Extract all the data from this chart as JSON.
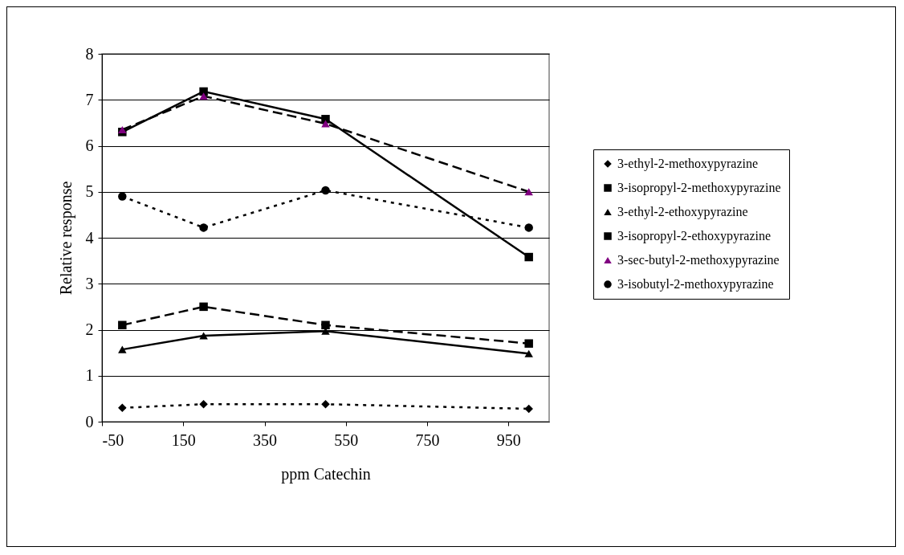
{
  "chart_data": {
    "type": "line",
    "xlabel": "ppm Catechin",
    "ylabel": "Relative response",
    "x": [
      0,
      200,
      500,
      1000
    ],
    "series": [
      {
        "name": "3-ethyl-2-methoxypyrazine",
        "color": "#000000",
        "marker": "diamond",
        "line_style": "dotted",
        "values": [
          0.3,
          0.38,
          0.38,
          0.28
        ]
      },
      {
        "name": "3-isopropyl-2-methoxypyrazine",
        "color": "#000000",
        "marker": "square",
        "line_style": "dashed",
        "values": [
          2.1,
          2.5,
          2.1,
          1.7
        ]
      },
      {
        "name": "3-ethyl-2-ethoxypyrazine",
        "color": "#000000",
        "marker": "triangle",
        "line_style": "solid",
        "values": [
          1.57,
          1.87,
          1.97,
          1.48
        ]
      },
      {
        "name": "3-isopropyl-2-ethoxypyrazine",
        "color": "#000000",
        "marker": "square",
        "line_style": "solid",
        "values": [
          6.3,
          7.18,
          6.58,
          3.58
        ]
      },
      {
        "name": "3-sec-butyl-2-methoxypyrazine",
        "color": "#800080",
        "marker": "triangle",
        "line_style": "dashed",
        "values": [
          6.35,
          7.08,
          6.48,
          5.0
        ]
      },
      {
        "name": "3-isobutyl-2-methoxypyrazine",
        "color": "#000000",
        "marker": "circle",
        "line_style": "dotted",
        "values": [
          4.9,
          4.22,
          5.03,
          4.22
        ]
      }
    ],
    "xlim": [
      -50,
      1050
    ],
    "xticks": [
      -50,
      150,
      350,
      550,
      750,
      950
    ],
    "ylim": [
      0,
      8
    ],
    "yticks": [
      0,
      1,
      2,
      3,
      4,
      5,
      6,
      7,
      8
    ],
    "grid": "y",
    "legend": "right"
  }
}
